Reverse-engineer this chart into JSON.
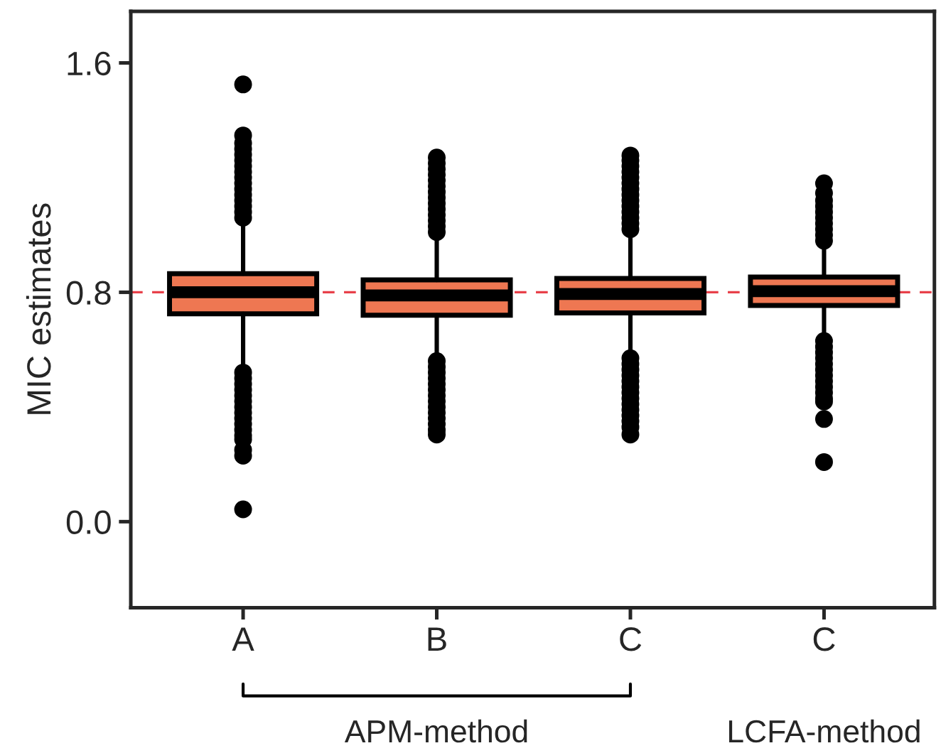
{
  "chart_data": {
    "type": "box",
    "ylabel": "MIC estimates",
    "categories": [
      "A",
      "B",
      "C",
      "C"
    ],
    "color": "#ee7752",
    "boxes": [
      {
        "low": 0.535,
        "q1": 0.725,
        "median": 0.8,
        "q3": 0.865,
        "high": 1.055,
        "outliers": [
          1.525,
          1.347,
          1.32,
          1.3,
          1.28,
          1.26,
          1.24,
          1.22,
          1.2,
          1.18,
          1.16,
          1.14,
          1.12,
          1.1,
          1.08,
          1.06,
          0.52,
          0.5,
          0.48,
          0.46,
          0.44,
          0.42,
          0.4,
          0.38,
          0.36,
          0.34,
          0.32,
          0.3,
          0.287,
          0.25,
          0.23,
          0.043
        ]
      },
      {
        "low": 0.576,
        "q1": 0.72,
        "median": 0.789,
        "q3": 0.843,
        "high": 0.997,
        "outliers": [
          1.27,
          1.25,
          1.23,
          1.21,
          1.19,
          1.17,
          1.15,
          1.13,
          1.11,
          1.09,
          1.07,
          1.05,
          1.03,
          1.01,
          0.56,
          0.54,
          0.52,
          0.5,
          0.48,
          0.46,
          0.44,
          0.42,
          0.4,
          0.38,
          0.36,
          0.34,
          0.32,
          0.304
        ]
      },
      {
        "low": 0.585,
        "q1": 0.728,
        "median": 0.794,
        "q3": 0.848,
        "high": 1.0,
        "outliers": [
          1.277,
          1.26,
          1.24,
          1.22,
          1.2,
          1.18,
          1.16,
          1.14,
          1.12,
          1.1,
          1.08,
          1.06,
          1.04,
          1.02,
          0.57,
          0.55,
          0.53,
          0.51,
          0.49,
          0.47,
          0.45,
          0.43,
          0.41,
          0.39,
          0.37,
          0.35,
          0.33,
          0.304
        ]
      },
      {
        "low": 0.642,
        "q1": 0.754,
        "median": 0.804,
        "q3": 0.853,
        "high": 0.964,
        "outliers": [
          1.18,
          1.146,
          1.12,
          1.1,
          1.08,
          1.06,
          1.04,
          1.02,
          1.0,
          0.98,
          0.63,
          0.61,
          0.59,
          0.57,
          0.55,
          0.53,
          0.51,
          0.49,
          0.47,
          0.45,
          0.43,
          0.419,
          0.358,
          0.208
        ]
      }
    ],
    "ylim": [
      -0.3,
      1.78
    ],
    "yticks": [
      {
        "value": 0.0,
        "label": "0.0"
      },
      {
        "value": 0.8,
        "label": "0.8"
      },
      {
        "value": 1.6,
        "label": "1.6"
      }
    ],
    "ref_lines": [
      {
        "axis": "y",
        "value": 0.8,
        "color": "#e8404a",
        "line_style": "dashed"
      }
    ],
    "grid": false,
    "legend": false,
    "annotations": [
      "APM-method",
      "LCFA-method"
    ]
  }
}
